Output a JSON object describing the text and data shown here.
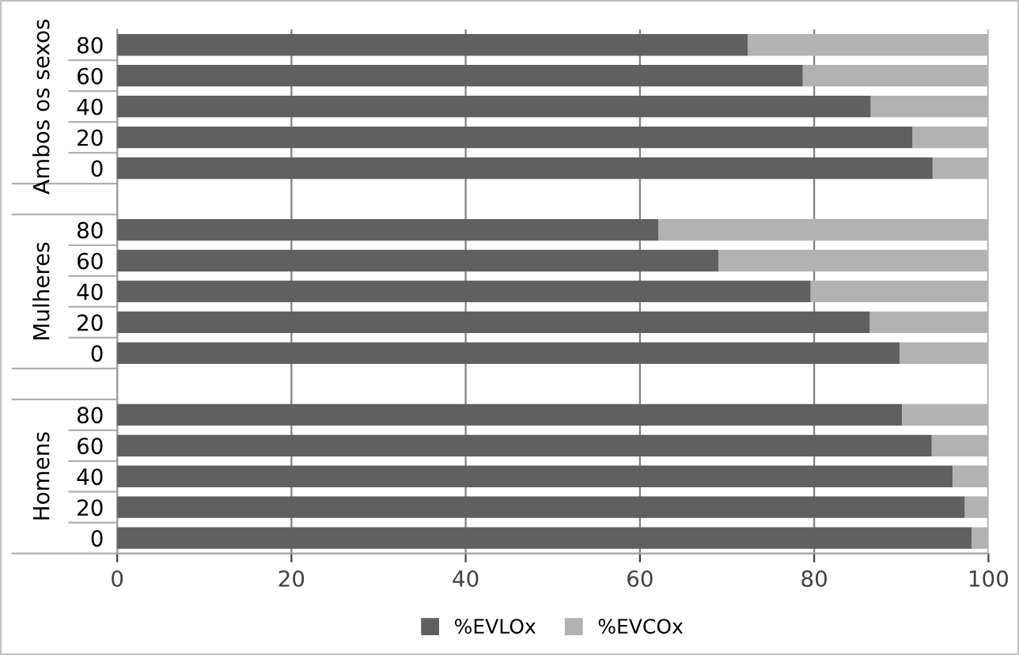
{
  "chart_data": {
    "type": "bar",
    "orientation": "horizontal",
    "stacked": true,
    "categories": [
      "80",
      "60",
      "40",
      "20",
      "0",
      null,
      "80",
      "60",
      "40",
      "20",
      "0",
      null,
      "80",
      "60",
      "40",
      "20",
      "0"
    ],
    "series": [
      {
        "name": "%EVLOx",
        "color": "#606060",
        "values": [
          72.4,
          78.7,
          86.5,
          91.3,
          93.6,
          null,
          62.1,
          69.0,
          79.6,
          86.4,
          89.8,
          null,
          90.1,
          93.5,
          95.9,
          97.3,
          98.1
        ]
      },
      {
        "name": "%EVCOx",
        "color": "#b2b2b2",
        "values": [
          27.6,
          21.3,
          13.5,
          8.7,
          6.4,
          null,
          37.9,
          31.0,
          20.4,
          13.6,
          10.2,
          null,
          9.9,
          6.5,
          4.1,
          2.7,
          1.9
        ]
      }
    ],
    "annotations": [
      "Ambos os sexos",
      "Mulheres",
      "Homens"
    ],
    "xlim": [
      0,
      100
    ],
    "xticks": [
      0,
      20,
      40,
      60,
      80,
      100
    ],
    "grid": "x",
    "legend": "bottom"
  }
}
